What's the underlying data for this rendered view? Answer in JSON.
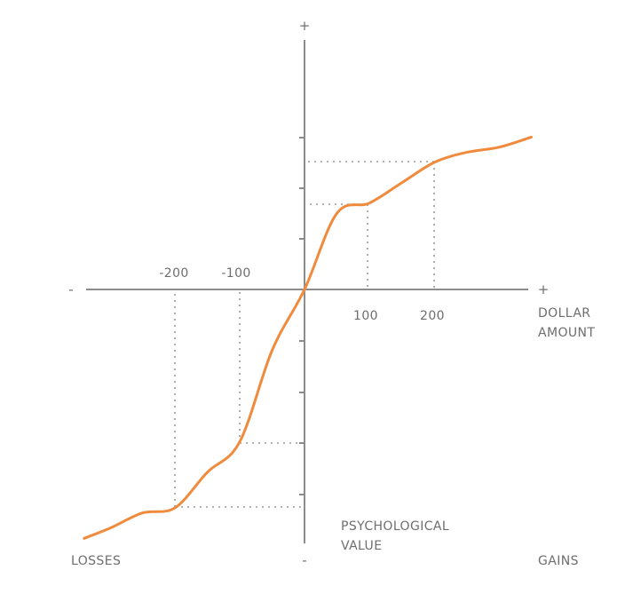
{
  "figure": {
    "title": "",
    "curve_color": "#f08a3c",
    "axis_color": "#8c8c8c",
    "guide_color": "#9a9a9a"
  },
  "axes": {
    "x_positive_sign": "+",
    "x_negative_sign": "-",
    "y_positive_sign": "+",
    "y_negative_sign": "-",
    "x_label_line1": "DOLLAR",
    "x_label_line2": "AMOUNT",
    "y_label_line1": "PSYCHOLOGICAL",
    "y_label_line2": "VALUE",
    "losses_label": "LOSSES",
    "gains_label": "GAINS"
  },
  "ticks": {
    "x_tick_labels": [
      "-200",
      "-100",
      "100",
      "200"
    ]
  },
  "chart_data": {
    "type": "line",
    "description_source": "prospect theory value function",
    "x": [
      -340,
      -300,
      -250,
      -200,
      -150,
      -100,
      -50,
      0,
      50,
      100,
      150,
      200,
      250,
      300,
      350
    ],
    "y": [
      -4.9,
      -4.7,
      -4.4,
      -4.3,
      -3.6,
      -3.0,
      -1.2,
      0,
      1.5,
      1.7,
      2.1,
      2.5,
      2.7,
      2.8,
      3.0
    ],
    "guides": [
      {
        "x": 100,
        "y": 1.7
      },
      {
        "x": 200,
        "y": 2.5
      },
      {
        "x": -100,
        "y": -3.0
      },
      {
        "x": -200,
        "y": -4.3
      }
    ],
    "x_tick_labels": [
      "-200",
      "-100",
      "100",
      "200"
    ],
    "xlabel": "DOLLAR AMOUNT",
    "ylabel": "PSYCHOLOGICAL VALUE"
  }
}
